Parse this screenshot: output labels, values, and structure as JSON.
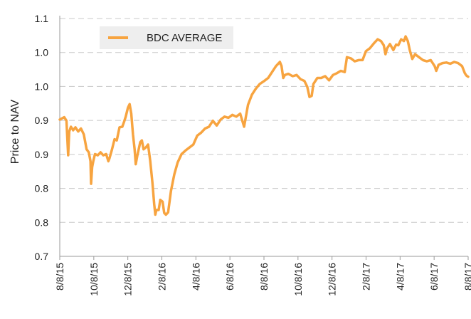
{
  "chart_data": {
    "type": "line",
    "ylabel": "Price to NAV",
    "xlabel": "",
    "title": "",
    "ylim": [
      0.7,
      1.1
    ],
    "y_ticks": [
      "0.7",
      "0.8",
      "0.8",
      "0.9",
      "0.9",
      "1.0",
      "1.0",
      "1.1"
    ],
    "y_tick_values": [
      0.7,
      0.76,
      0.81,
      0.87,
      0.92,
      0.98,
      1.03,
      1.1
    ],
    "x_ticks": [
      "8/8/15",
      "10/8/15",
      "12/8/15",
      "2/8/16",
      "4/8/16",
      "6/8/16",
      "8/8/16",
      "10/8/16",
      "12/8/16",
      "2/8/17",
      "4/8/17",
      "6/8/17",
      "8/8/17"
    ],
    "grid": "horizontal dashed",
    "legend_position": "top-left",
    "colors": {
      "series": "#F7A440",
      "grid": "#c8c8c8",
      "axis": "#999999",
      "legend_bg": "#eeeeee"
    },
    "series": [
      {
        "name": "BDC AVERAGE",
        "points": [
          [
            "2015-08-08",
            0.93
          ],
          [
            "2015-08-12",
            0.932
          ],
          [
            "2015-08-16",
            0.934
          ],
          [
            "2015-08-20",
            0.928
          ],
          [
            "2015-08-23",
            0.87
          ],
          [
            "2015-08-25",
            0.91
          ],
          [
            "2015-08-28",
            0.918
          ],
          [
            "2015-09-01",
            0.912
          ],
          [
            "2015-09-05",
            0.917
          ],
          [
            "2015-09-10",
            0.91
          ],
          [
            "2015-09-15",
            0.915
          ],
          [
            "2015-09-20",
            0.905
          ],
          [
            "2015-09-25",
            0.88
          ],
          [
            "2015-09-29",
            0.875
          ],
          [
            "2015-10-02",
            0.86
          ],
          [
            "2015-10-03",
            0.822
          ],
          [
            "2015-10-05",
            0.85
          ],
          [
            "2015-10-07",
            0.86
          ],
          [
            "2015-10-10",
            0.872
          ],
          [
            "2015-10-15",
            0.87
          ],
          [
            "2015-10-20",
            0.875
          ],
          [
            "2015-10-25",
            0.87
          ],
          [
            "2015-10-30",
            0.872
          ],
          [
            "2015-11-03",
            0.86
          ],
          [
            "2015-11-05",
            0.865
          ],
          [
            "2015-11-09",
            0.878
          ],
          [
            "2015-11-14",
            0.897
          ],
          [
            "2015-11-18",
            0.895
          ],
          [
            "2015-11-23",
            0.917
          ],
          [
            "2015-11-28",
            0.918
          ],
          [
            "2015-12-01",
            0.926
          ],
          [
            "2015-12-04",
            0.935
          ],
          [
            "2015-12-08",
            0.95
          ],
          [
            "2015-12-11",
            0.956
          ],
          [
            "2015-12-14",
            0.94
          ],
          [
            "2015-12-17",
            0.905
          ],
          [
            "2015-12-20",
            0.88
          ],
          [
            "2015-12-22",
            0.855
          ],
          [
            "2015-12-25",
            0.87
          ],
          [
            "2015-12-30",
            0.892
          ],
          [
            "2016-01-02",
            0.895
          ],
          [
            "2016-01-05",
            0.88
          ],
          [
            "2016-01-09",
            0.883
          ],
          [
            "2016-01-13",
            0.888
          ],
          [
            "2016-01-17",
            0.86
          ],
          [
            "2016-01-21",
            0.823
          ],
          [
            "2016-01-24",
            0.788
          ],
          [
            "2016-01-26",
            0.77
          ],
          [
            "2016-01-28",
            0.778
          ],
          [
            "2016-02-01",
            0.778
          ],
          [
            "2016-02-04",
            0.795
          ],
          [
            "2016-02-08",
            0.792
          ],
          [
            "2016-02-11",
            0.773
          ],
          [
            "2016-02-14",
            0.77
          ],
          [
            "2016-02-18",
            0.774
          ],
          [
            "2016-02-23",
            0.81
          ],
          [
            "2016-02-29",
            0.838
          ],
          [
            "2016-03-06",
            0.858
          ],
          [
            "2016-03-13",
            0.872
          ],
          [
            "2016-03-20",
            0.878
          ],
          [
            "2016-03-27",
            0.883
          ],
          [
            "2016-04-03",
            0.888
          ],
          [
            "2016-04-10",
            0.903
          ],
          [
            "2016-04-17",
            0.908
          ],
          [
            "2016-04-24",
            0.915
          ],
          [
            "2016-05-01",
            0.918
          ],
          [
            "2016-05-08",
            0.928
          ],
          [
            "2016-05-15",
            0.92
          ],
          [
            "2016-05-22",
            0.93
          ],
          [
            "2016-05-29",
            0.935
          ],
          [
            "2016-06-05",
            0.933
          ],
          [
            "2016-06-12",
            0.938
          ],
          [
            "2016-06-19",
            0.935
          ],
          [
            "2016-06-26",
            0.94
          ],
          [
            "2016-07-03",
            0.918
          ],
          [
            "2016-07-10",
            0.955
          ],
          [
            "2016-07-17",
            0.972
          ],
          [
            "2016-07-24",
            0.982
          ],
          [
            "2016-07-31",
            0.99
          ],
          [
            "2016-08-08",
            0.995
          ],
          [
            "2016-08-15",
            1.0
          ],
          [
            "2016-08-22",
            1.01
          ],
          [
            "2016-08-29",
            1.02
          ],
          [
            "2016-09-05",
            1.027
          ],
          [
            "2016-09-08",
            1.02
          ],
          [
            "2016-09-11",
            1.0
          ],
          [
            "2016-09-14",
            1.005
          ],
          [
            "2016-09-20",
            1.007
          ],
          [
            "2016-09-28",
            1.003
          ],
          [
            "2016-10-05",
            1.005
          ],
          [
            "2016-10-12",
            0.998
          ],
          [
            "2016-10-19",
            0.995
          ],
          [
            "2016-10-24",
            0.985
          ],
          [
            "2016-10-28",
            0.968
          ],
          [
            "2016-11-01",
            0.97
          ],
          [
            "2016-11-04",
            0.99
          ],
          [
            "2016-11-11",
            1.0
          ],
          [
            "2016-11-18",
            1.0
          ],
          [
            "2016-11-25",
            1.003
          ],
          [
            "2016-12-02",
            0.996
          ],
          [
            "2016-12-09",
            1.005
          ],
          [
            "2016-12-16",
            1.008
          ],
          [
            "2016-12-23",
            1.012
          ],
          [
            "2016-12-30",
            1.01
          ],
          [
            "2017-01-03",
            1.035
          ],
          [
            "2017-01-10",
            1.033
          ],
          [
            "2017-01-17",
            1.028
          ],
          [
            "2017-01-24",
            1.03
          ],
          [
            "2017-01-31",
            1.03
          ],
          [
            "2017-02-06",
            1.045
          ],
          [
            "2017-02-13",
            1.05
          ],
          [
            "2017-02-20",
            1.058
          ],
          [
            "2017-02-27",
            1.065
          ],
          [
            "2017-03-05",
            1.062
          ],
          [
            "2017-03-10",
            1.055
          ],
          [
            "2017-03-13",
            1.04
          ],
          [
            "2017-03-16",
            1.05
          ],
          [
            "2017-03-21",
            1.057
          ],
          [
            "2017-03-27",
            1.047
          ],
          [
            "2017-04-01",
            1.056
          ],
          [
            "2017-04-05",
            1.055
          ],
          [
            "2017-04-10",
            1.065
          ],
          [
            "2017-04-15",
            1.062
          ],
          [
            "2017-04-18",
            1.07
          ],
          [
            "2017-04-22",
            1.062
          ],
          [
            "2017-04-26",
            1.045
          ],
          [
            "2017-04-30",
            1.032
          ],
          [
            "2017-05-05",
            1.04
          ],
          [
            "2017-05-12",
            1.035
          ],
          [
            "2017-05-19",
            1.03
          ],
          [
            "2017-05-26",
            1.028
          ],
          [
            "2017-06-02",
            1.03
          ],
          [
            "2017-06-09",
            1.02
          ],
          [
            "2017-06-12",
            1.012
          ],
          [
            "2017-06-16",
            1.022
          ],
          [
            "2017-06-23",
            1.025
          ],
          [
            "2017-06-30",
            1.026
          ],
          [
            "2017-07-07",
            1.024
          ],
          [
            "2017-07-14",
            1.027
          ],
          [
            "2017-07-21",
            1.025
          ],
          [
            "2017-07-28",
            1.02
          ],
          [
            "2017-08-02",
            1.008
          ],
          [
            "2017-08-05",
            1.004
          ],
          [
            "2017-08-08",
            1.002
          ]
        ]
      }
    ]
  }
}
